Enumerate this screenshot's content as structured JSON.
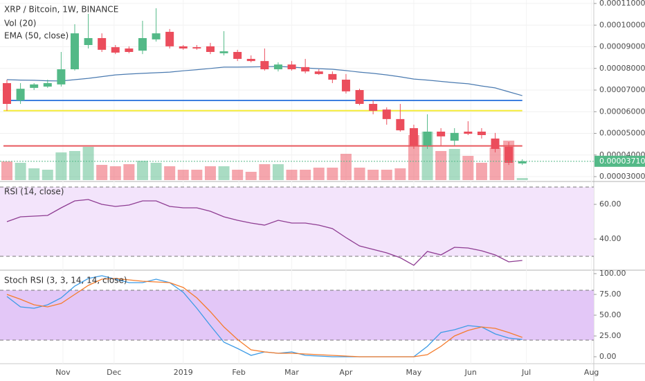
{
  "chart_data": [
    {
      "type": "candlestick",
      "title": "XRP / Bitcoin, 1W, BINANCE",
      "subtitles": [
        "Vol (20)",
        "EMA (50, close)"
      ],
      "open": [
        7.32e-05,
        6.52e-05,
        7.1e-05,
        7.16e-05,
        7.26e-05,
        7.96e-05,
        9.08e-05,
        9.4e-05,
        8.98e-05,
        8.92e-05,
        8.82e-05,
        9.34e-05,
        9.69e-05,
        9.02e-05,
        8.98e-05,
        9.02e-05,
        8.7e-05,
        8.76e-05,
        8.44e-05,
        8.34e-05,
        7.96e-05,
        8.18e-05,
        8.06e-05,
        7.86e-05,
        7.74e-05,
        7.48e-05,
        7e-05,
        6.36e-05,
        6.1e-05,
        5.66e-05,
        5.24e-05,
        4.44e-05,
        5.08e-05,
        4.66e-05,
        5.08e-05,
        5.08e-05,
        4.76e-05,
        4.38e-05,
        3.61e-05
      ],
      "high": [
        7.48e-05,
        7.32e-05,
        7.32e-05,
        7.48e-05,
        8.76e-05,
        0.0001004,
        0.0001052,
        9.62e-05,
        9.08e-05,
        9.02e-05,
        0.000102,
        0.0001078,
        9.82e-05,
        9.08e-05,
        9.08e-05,
        9.18e-05,
        9.72e-05,
        8.86e-05,
        8.6e-05,
        8.92e-05,
        8.28e-05,
        8.34e-05,
        8.44e-05,
        7.96e-05,
        7.86e-05,
        7.74e-05,
        7.06e-05,
        6.52e-05,
        6.2e-05,
        6.36e-05,
        5.4e-05,
        5.88e-05,
        5.24e-05,
        5.24e-05,
        5.56e-05,
        5.24e-05,
        5.02e-05,
        4.6e-05,
        3.8e-05
      ],
      "low": [
        6.04e-05,
        6.36e-05,
        7e-05,
        7.1e-05,
        7.16e-05,
        7.9e-05,
        8.92e-05,
        8.76e-05,
        8.66e-05,
        8.7e-05,
        8.66e-05,
        9.24e-05,
        8.92e-05,
        8.86e-05,
        8.86e-05,
        8.66e-05,
        8.6e-05,
        8.34e-05,
        8.28e-05,
        7.9e-05,
        7.86e-05,
        7.9e-05,
        7.77e-05,
        7.7e-05,
        7.32e-05,
        6.84e-05,
        6.3e-05,
        5.88e-05,
        5.4e-05,
        5.08e-05,
        4.28e-05,
        4.28e-05,
        4.44e-05,
        4.44e-05,
        4.92e-05,
        4.76e-05,
        4.12e-05,
        3.54e-05,
        3.54e-05
      ],
      "close": [
        6.36e-05,
        7.06e-05,
        7.26e-05,
        7.32e-05,
        7.96e-05,
        9.62e-05,
        9.4e-05,
        8.86e-05,
        8.73e-05,
        8.76e-05,
        9.4e-05,
        9.62e-05,
        9.02e-05,
        8.92e-05,
        8.92e-05,
        8.76e-05,
        8.79e-05,
        8.44e-05,
        8.34e-05,
        7.96e-05,
        8.18e-05,
        7.96e-05,
        7.86e-05,
        7.74e-05,
        7.48e-05,
        6.94e-05,
        6.36e-05,
        6.04e-05,
        5.66e-05,
        5.14e-05,
        4.44e-05,
        5.08e-05,
        4.86e-05,
        5.02e-05,
        4.98e-05,
        4.92e-05,
        4.28e-05,
        3.64e-05,
        3.71e-05
      ],
      "volume": [
        27,
        25,
        17,
        15,
        40,
        42,
        48,
        22,
        20,
        23,
        28,
        25,
        20,
        15,
        15,
        20,
        20,
        15,
        12,
        23,
        23,
        15,
        15,
        18,
        18,
        38,
        18,
        15,
        15,
        17,
        65,
        70,
        42,
        45,
        35,
        25,
        47,
        57,
        3
      ],
      "ema": [
        7.48e-05,
        7.46e-05,
        7.45e-05,
        7.43e-05,
        7.42e-05,
        7.48e-05,
        7.54e-05,
        7.62e-05,
        7.7e-05,
        7.74e-05,
        7.77e-05,
        7.8e-05,
        7.83e-05,
        7.89e-05,
        7.94e-05,
        8e-05,
        8.06e-05,
        8.06e-05,
        8.07e-05,
        8.08e-05,
        8.09e-05,
        8.06e-05,
        8.02e-05,
        7.99e-05,
        7.96e-05,
        7.9e-05,
        7.83e-05,
        7.77e-05,
        7.7e-05,
        7.61e-05,
        7.51e-05,
        7.46e-05,
        7.4e-05,
        7.34e-05,
        7.29e-05,
        7.19e-05,
        7.1e-05,
        6.92e-05,
        6.74e-05
      ],
      "up_color": "#53b987",
      "down_color": "#eb4d5c",
      "ema_color": "#4a7ab0",
      "hlines": [
        {
          "value": 6.52e-05,
          "color": "#3d7fe0"
        },
        {
          "value": 6.05e-05,
          "color": "#f5ec38"
        },
        {
          "value": 4.42e-05,
          "color": "#e8585e"
        }
      ],
      "last_price": {
        "value": 3.71e-05,
        "label": "0.00003710"
      },
      "ylim": [
        2.776e-05,
        0.0001116
      ],
      "yticks": [
        {
          "value": 0.00011,
          "label": "0.00011000"
        },
        {
          "value": 0.0001,
          "label": "0.00010000"
        },
        {
          "value": 9e-05,
          "label": "0.00009000"
        },
        {
          "value": 8e-05,
          "label": "0.00008000"
        },
        {
          "value": 7e-05,
          "label": "0.00007000"
        },
        {
          "value": 6e-05,
          "label": "0.00006000"
        },
        {
          "value": 5e-05,
          "label": "0.00005000"
        },
        {
          "value": 4e-05,
          "label": "0.00004000"
        },
        {
          "value": 3e-05,
          "label": "0.00003000"
        }
      ],
      "xlim": [
        -0.51,
        43.27
      ],
      "xticks": [
        {
          "value": 4.13,
          "label": "Nov"
        },
        {
          "value": 7.9,
          "label": "Dec"
        },
        {
          "value": 13.0,
          "label": "2019"
        },
        {
          "value": 17.1,
          "label": "Feb"
        },
        {
          "value": 21.0,
          "label": "Mar"
        },
        {
          "value": 25.0,
          "label": "Apr"
        },
        {
          "value": 30.0,
          "label": "May"
        },
        {
          "value": 34.2,
          "label": "Jun"
        },
        {
          "value": 38.3,
          "label": "Jul"
        },
        {
          "value": 43.1,
          "label": "Aug"
        }
      ]
    },
    {
      "type": "line",
      "title": "RSI (14, close)",
      "color": "#8e3c92",
      "values": [
        50,
        52.8,
        53.2,
        53.6,
        58,
        62,
        62.8,
        60,
        58.8,
        59.6,
        62,
        62,
        58.8,
        58,
        58,
        56,
        52.8,
        50.8,
        49.2,
        48,
        50.8,
        49.2,
        49.2,
        48,
        46,
        40.8,
        36,
        34,
        32,
        29.2,
        24.8,
        32.8,
        30.8,
        35.2,
        34.8,
        33.2,
        30.8,
        26.8,
        27.6
      ],
      "levels": [
        70,
        30
      ],
      "ylim": [
        22,
        72.8
      ],
      "yticks": [
        {
          "value": 60,
          "label": "60.00"
        },
        {
          "value": 40,
          "label": "40.00"
        }
      ]
    },
    {
      "type": "line",
      "title": "Stoch RSI (3, 3, 14, 14, close)",
      "series": [
        {
          "color": "#3c9be6",
          "values": [
            72.5,
            60,
            58.3,
            62.5,
            70.8,
            85,
            94.2,
            97.5,
            93.3,
            89.2,
            89.2,
            93.3,
            89.2,
            77.5,
            58.3,
            37.5,
            17.5,
            10,
            1.7,
            5.8,
            4.2,
            5.8,
            1.7,
            0.8,
            0,
            0,
            0,
            0,
            0,
            0,
            0,
            12.5,
            29.2,
            32.5,
            37.5,
            35.8,
            27.5,
            22.5,
            20.8
          ]
        },
        {
          "color": "#f57c2c",
          "values": [
            75,
            69.2,
            62.5,
            60,
            64.2,
            75,
            85.8,
            93.3,
            94.2,
            92.5,
            90.8,
            90,
            89.2,
            83.3,
            70.8,
            54.2,
            35.8,
            20.8,
            8.3,
            5.8,
            4.2,
            4.2,
            3.3,
            2.5,
            1.7,
            0.8,
            0,
            0,
            0,
            0,
            0,
            2.5,
            12.5,
            25,
            31.7,
            35.8,
            34.2,
            29.2,
            23.3
          ]
        }
      ],
      "levels": [
        80,
        20
      ],
      "ylim": [
        -8.33,
        103.33
      ],
      "yticks": [
        {
          "value": 100,
          "label": "100.00"
        },
        {
          "value": 75,
          "label": "75.00"
        },
        {
          "value": 50,
          "label": "50.00"
        },
        {
          "value": 25,
          "label": "25.00"
        },
        {
          "value": 0,
          "label": "0.00"
        }
      ]
    }
  ]
}
